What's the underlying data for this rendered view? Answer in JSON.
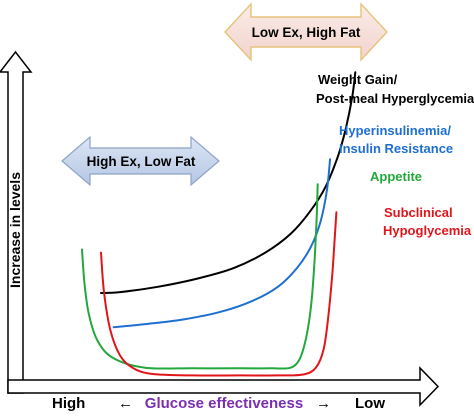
{
  "chart_data": {
    "type": "line",
    "title": "",
    "ylabel": "Increase in levels",
    "xlabel": "Glucose effectiveness",
    "x_left_label": "High",
    "x_right_label": "Low",
    "x_left_arrow": "←",
    "x_right_arrow": "→",
    "grid": false,
    "xlim": [
      0,
      100
    ],
    "ylim": [
      0,
      100
    ],
    "series": [
      {
        "name": "Weight Gain/",
        "name_line2": "Post-meal Hyperglycemia",
        "color": "#000000",
        "x": [
          6,
          12,
          24,
          36,
          48,
          58,
          66,
          72,
          77,
          81,
          83.5,
          85.5,
          86.5
        ],
        "y": [
          27,
          27.3,
          29,
          31.5,
          35,
          40,
          46,
          53,
          61,
          71,
          80,
          90,
          98
        ]
      },
      {
        "name": "Hyperinsulinemia/",
        "name_line2": "Insulin Resistance",
        "color": "#1f6fd1",
        "x": [
          10,
          20,
          32,
          44,
          54,
          62,
          68,
          72.5,
          75.5,
          77.5,
          78.5
        ],
        "y": [
          16,
          17,
          18.5,
          21,
          24.5,
          29,
          35,
          42,
          50,
          60,
          70
        ]
      },
      {
        "name": "Appetite",
        "color": "#22a83c",
        "x": [
          0,
          0.8,
          2.2,
          5,
          10,
          20,
          35,
          50,
          60,
          66,
          69,
          71,
          72.5,
          73.5,
          74.2,
          74.6
        ],
        "y": [
          41,
          30,
          20,
          11.5,
          6,
          3,
          2.8,
          2.8,
          2.8,
          3,
          6,
          13,
          23,
          36,
          50,
          62
        ]
      },
      {
        "name": "Subclinical",
        "name_line2": "Hypoglycemia",
        "color": "#e0161b",
        "x": [
          6,
          7,
          9,
          12,
          16,
          22,
          35,
          50,
          62,
          70,
          74,
          76.5,
          78,
          79.2,
          80,
          80.5
        ],
        "y": [
          40,
          27,
          15,
          7,
          3,
          1,
          0.5,
          0.5,
          0.5,
          0.8,
          3,
          9,
          20,
          33,
          45,
          53
        ]
      }
    ],
    "annotations": [
      {
        "text": "High Ex, Low Fat",
        "fill": "#c5d3ea"
      },
      {
        "text": "Low Ex, High Fat",
        "fill": "#f6ddd8"
      }
    ]
  }
}
